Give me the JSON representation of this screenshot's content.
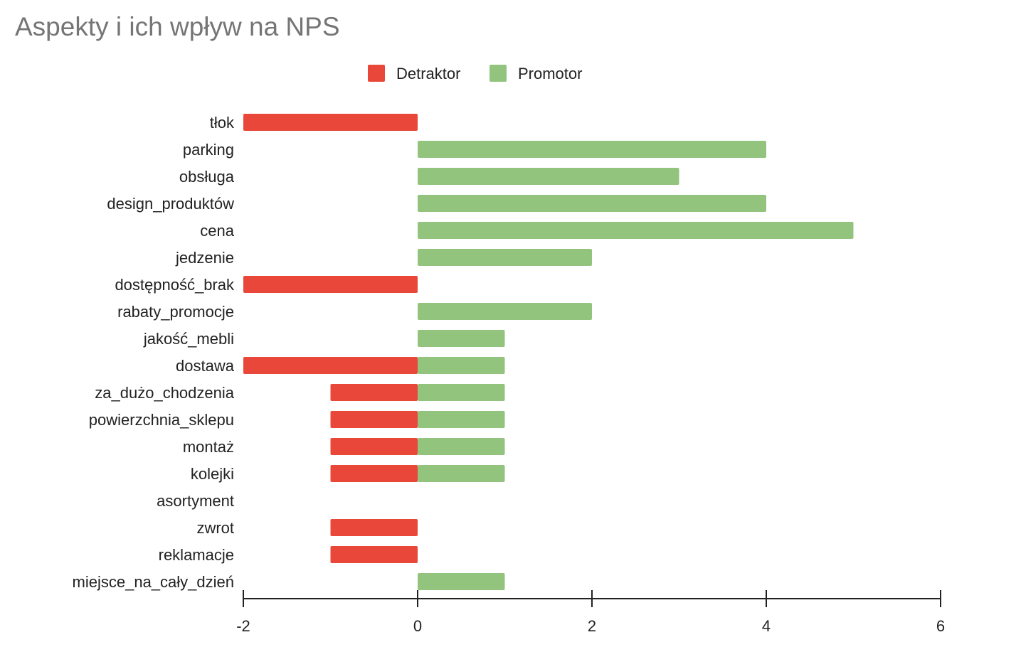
{
  "chart_data": {
    "type": "bar",
    "orientation": "horizontal",
    "stacked": true,
    "title": "Aspekty i ich wpływ na NPS",
    "xlabel": "",
    "ylabel": "",
    "xlim": [
      -2,
      6
    ],
    "xticks": [
      -2,
      0,
      2,
      4,
      6
    ],
    "grid": false,
    "legend_position": "top",
    "categories": [
      "tłok",
      "parking",
      "obsługa",
      "design_produktów",
      "cena",
      "jedzenie",
      "dostępność_brak",
      "rabaty_promocje",
      "jakość_mebli",
      "dostawa",
      "za_dużo_chodzenia",
      "powierzchnia_sklepu",
      "montaż",
      "kolejki",
      "asortyment",
      "zwrot",
      "reklamacje",
      "miejsce_na_cały_dzień"
    ],
    "series": [
      {
        "name": "Detraktor",
        "color": "#e8473a",
        "values": [
          -2,
          0,
          0,
          0,
          0,
          0,
          -2,
          0,
          0,
          -2,
          -1,
          -1,
          -1,
          -1,
          0,
          -1,
          -1,
          0
        ]
      },
      {
        "name": "Promotor",
        "color": "#93c47d",
        "values": [
          0,
          4,
          3,
          4,
          5,
          2,
          0,
          2,
          1,
          1,
          1,
          1,
          1,
          1,
          0,
          0,
          0,
          1
        ]
      }
    ]
  }
}
